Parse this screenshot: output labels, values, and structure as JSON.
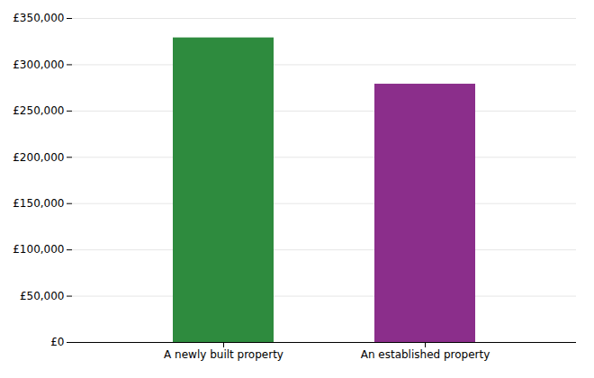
{
  "chart_data": {
    "type": "bar",
    "categories": [
      "A newly built property",
      "An established property"
    ],
    "values": [
      329000,
      279000
    ],
    "colors": [
      "#2e8b3e",
      "#8b2e8b"
    ],
    "ylim": [
      0,
      350000
    ],
    "yticks": [
      {
        "value": 0,
        "label": "£0"
      },
      {
        "value": 50000,
        "label": "£50,000"
      },
      {
        "value": 100000,
        "label": "£100,000"
      },
      {
        "value": 150000,
        "label": "£150,000"
      },
      {
        "value": 200000,
        "label": "£200,000"
      },
      {
        "value": 250000,
        "label": "£250,000"
      },
      {
        "value": 300000,
        "label": "£300,000"
      },
      {
        "value": 350000,
        "label": "£350,000"
      }
    ],
    "grid": true
  }
}
